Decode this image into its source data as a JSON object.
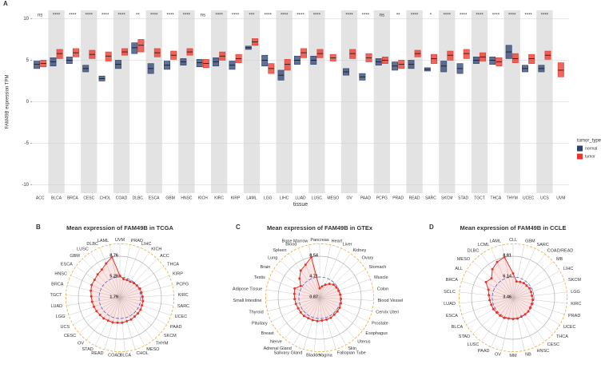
{
  "chart_data": [
    {
      "type": "box",
      "panel": "A",
      "y_label": "FAM49B expression TPM",
      "x_label": "tissue",
      "legend_title": "tumor_type",
      "categories": [
        "ACC",
        "BLCA",
        "BRCA",
        "CESC",
        "CHOL",
        "COAD",
        "DLBC",
        "ESCA",
        "GBM",
        "HNSC",
        "KICH",
        "KIRC",
        "KIRP",
        "LAML",
        "LGG",
        "LIHC",
        "LUAD",
        "LUSC",
        "MESO",
        "OV",
        "PAAD",
        "PCPG",
        "PRAD",
        "READ",
        "SARC",
        "SKCM",
        "STAD",
        "TGCT",
        "THCA",
        "THYM",
        "UCEC",
        "UCS",
        "UVM"
      ],
      "significance": [
        "ns",
        "****",
        "****",
        "****",
        "****",
        "****",
        "**",
        "****",
        "****",
        "****",
        "ns",
        "****",
        "****",
        "***",
        "****",
        "****",
        "****",
        "****",
        null,
        "****",
        "****",
        "ns",
        "**",
        "****",
        "*",
        "****",
        "****",
        "****",
        "****",
        "****",
        "****",
        "****",
        null
      ],
      "series": [
        {
          "name": "normal",
          "color": "#2b4170",
          "values": [
            4.5,
            4.8,
            5.0,
            4.0,
            2.8,
            4.5,
            6.5,
            4.0,
            4.4,
            4.8,
            4.7,
            4.8,
            4.4,
            6.5,
            5.0,
            3.2,
            5.0,
            5.0,
            null,
            3.6,
            3.0,
            4.8,
            4.3,
            4.5,
            3.9,
            4.3,
            4.0,
            5.0,
            5.0,
            6.0,
            4.0,
            4.0,
            null
          ],
          "q1": [
            4.0,
            4.3,
            4.6,
            3.6,
            2.5,
            4.0,
            5.8,
            3.4,
            3.9,
            4.4,
            4.2,
            4.3,
            3.9,
            6.3,
            4.3,
            2.6,
            4.5,
            4.5,
            null,
            3.2,
            2.6,
            4.4,
            3.8,
            4.0,
            3.7,
            3.6,
            3.4,
            4.6,
            4.5,
            5.2,
            3.6,
            3.6,
            null
          ],
          "q3": [
            4.9,
            5.3,
            5.4,
            4.4,
            3.1,
            5.0,
            7.1,
            4.6,
            4.9,
            5.2,
            5.1,
            5.3,
            4.9,
            6.7,
            5.6,
            3.8,
            5.5,
            5.5,
            null,
            4.0,
            3.4,
            5.2,
            4.8,
            5.0,
            4.1,
            4.9,
            4.6,
            5.4,
            5.4,
            6.8,
            4.4,
            4.4,
            null
          ]
        },
        {
          "name": "tumor",
          "color": "#e8342a",
          "values": [
            4.6,
            5.8,
            5.9,
            5.7,
            5.5,
            6.0,
            6.8,
            5.9,
            5.6,
            6.0,
            4.6,
            5.5,
            5.2,
            7.2,
            4.0,
            4.5,
            5.9,
            5.8,
            5.3,
            5.8,
            5.3,
            5.0,
            4.5,
            5.8,
            5.2,
            5.6,
            5.8,
            5.4,
            4.8,
            5.2,
            5.2,
            5.6,
            3.8
          ],
          "q1": [
            4.2,
            5.2,
            5.4,
            5.2,
            4.9,
            5.6,
            6.0,
            5.4,
            5.1,
            5.6,
            4.1,
            5.0,
            4.7,
            6.8,
            3.4,
            3.8,
            5.3,
            5.3,
            4.9,
            5.2,
            4.8,
            4.6,
            4.0,
            5.4,
            4.6,
            5.0,
            5.2,
            4.9,
            4.3,
            4.7,
            4.6,
            5.1,
            3.0
          ],
          "q3": [
            5.0,
            6.3,
            6.4,
            6.2,
            6.0,
            6.4,
            7.5,
            6.4,
            6.1,
            6.4,
            5.1,
            6.0,
            5.7,
            7.6,
            4.6,
            5.1,
            6.4,
            6.3,
            5.7,
            6.3,
            5.8,
            5.4,
            5.0,
            6.2,
            5.7,
            6.1,
            6.3,
            5.9,
            5.3,
            5.8,
            5.7,
            6.1,
            4.7
          ]
        }
      ],
      "ylim": [
        -11,
        11
      ],
      "yticks": [
        -10,
        -5,
        0,
        5,
        10
      ],
      "grid": true
    },
    {
      "type": "radar",
      "panel": "B",
      "title": "Mean expression of FAM49B in TCGA",
      "color": "#e8342a",
      "categories": [
        "UVM",
        "PRAD",
        "LIHC",
        "KICH",
        "ACC",
        "THCA",
        "KIRP",
        "PCPG",
        "KIRC",
        "SARC",
        "UCEC",
        "PAAD",
        "SKCM",
        "THYM",
        "MESO",
        "CHOL",
        "BLCA",
        "COAD",
        "READ",
        "STAD",
        "OV",
        "CESC",
        "UCS",
        "LGG",
        "LUAD",
        "TGCT",
        "BRCA",
        "HNSC",
        "ESCA",
        "GBM",
        "LUSC",
        "DLBC",
        "LAML"
      ],
      "values": [
        5.5,
        5.0,
        5.0,
        5.0,
        5.2,
        5.3,
        5.5,
        5.5,
        5.6,
        5.7,
        5.7,
        5.8,
        5.8,
        5.8,
        5.9,
        5.9,
        6.0,
        6.0,
        6.1,
        6.1,
        6.2,
        6.2,
        6.3,
        6.4,
        6.5,
        6.6,
        6.8,
        7.0,
        7.0,
        7.2,
        7.4,
        8.0,
        8.76
      ],
      "rlim": [
        1.79,
        8.76
      ],
      "rticks": [
        1.79,
        5.28,
        8.76
      ]
    },
    {
      "type": "radar",
      "panel": "C",
      "title": "Mean expression of FAM49B in GTEx",
      "color": "#e8342a",
      "categories": [
        "Pancreas",
        "Heart",
        "Liver",
        "Kidney",
        "Ovary",
        "Stomach",
        "Muscle",
        "Colon",
        "Blood Vessel",
        "Cervix Uteri",
        "Prostate",
        "Esophagus",
        "Uterus",
        "Skin",
        "Fallopian Tube",
        "Vagina",
        "Bladder",
        "Salivary Gland",
        "Adrenal Gland",
        "Nerve",
        "Breast",
        "Pituitary",
        "Thyroid",
        "Small Intestine",
        "Adipose Tissue",
        "Testis",
        "Brain",
        "Lung",
        "Spleen",
        "Blood",
        "Bone Marrow"
      ],
      "values": [
        2.6,
        3.0,
        3.5,
        4.0,
        4.4,
        4.5,
        4.6,
        4.7,
        4.8,
        4.9,
        5.0,
        5.0,
        5.0,
        5.1,
        5.1,
        5.1,
        5.2,
        5.2,
        5.2,
        5.3,
        5.3,
        5.3,
        5.4,
        5.5,
        5.6,
        5.8,
        5.0,
        6.0,
        7.0,
        7.5,
        8.54
      ],
      "rlim": [
        0.87,
        8.54
      ],
      "rticks": [
        0.87,
        4.71,
        8.54
      ]
    },
    {
      "type": "radar",
      "panel": "D",
      "title": "Mean expression of FAM49B in CCLE",
      "color": "#e8342a",
      "categories": [
        "CLL",
        "GBM",
        "SARC",
        "COAD/READ",
        "MB",
        "LIHC",
        "SKCM",
        "LGG",
        "KIRC",
        "PRAD",
        "UCEC",
        "THCA",
        "CESC",
        "HNSC",
        "NB",
        "MM",
        "OV",
        "PAAD",
        "LUSC",
        "STAD",
        "BLCA",
        "ESCA",
        "LUAD",
        "SCLC",
        "BRCA",
        "ALL",
        "MESO",
        "DLBC",
        "LCML",
        "LAML"
      ],
      "values": [
        6.6,
        5.6,
        5.7,
        5.8,
        5.8,
        5.9,
        5.9,
        5.9,
        6.0,
        6.0,
        6.0,
        6.1,
        6.1,
        6.1,
        6.2,
        6.2,
        6.2,
        6.3,
        6.3,
        6.3,
        6.4,
        6.4,
        6.5,
        6.6,
        6.8,
        7.5,
        7.2,
        8.0,
        8.5,
        8.81
      ],
      "rlim": [
        3.46,
        8.81
      ],
      "rticks": [
        3.46,
        6.14,
        8.81
      ]
    }
  ]
}
